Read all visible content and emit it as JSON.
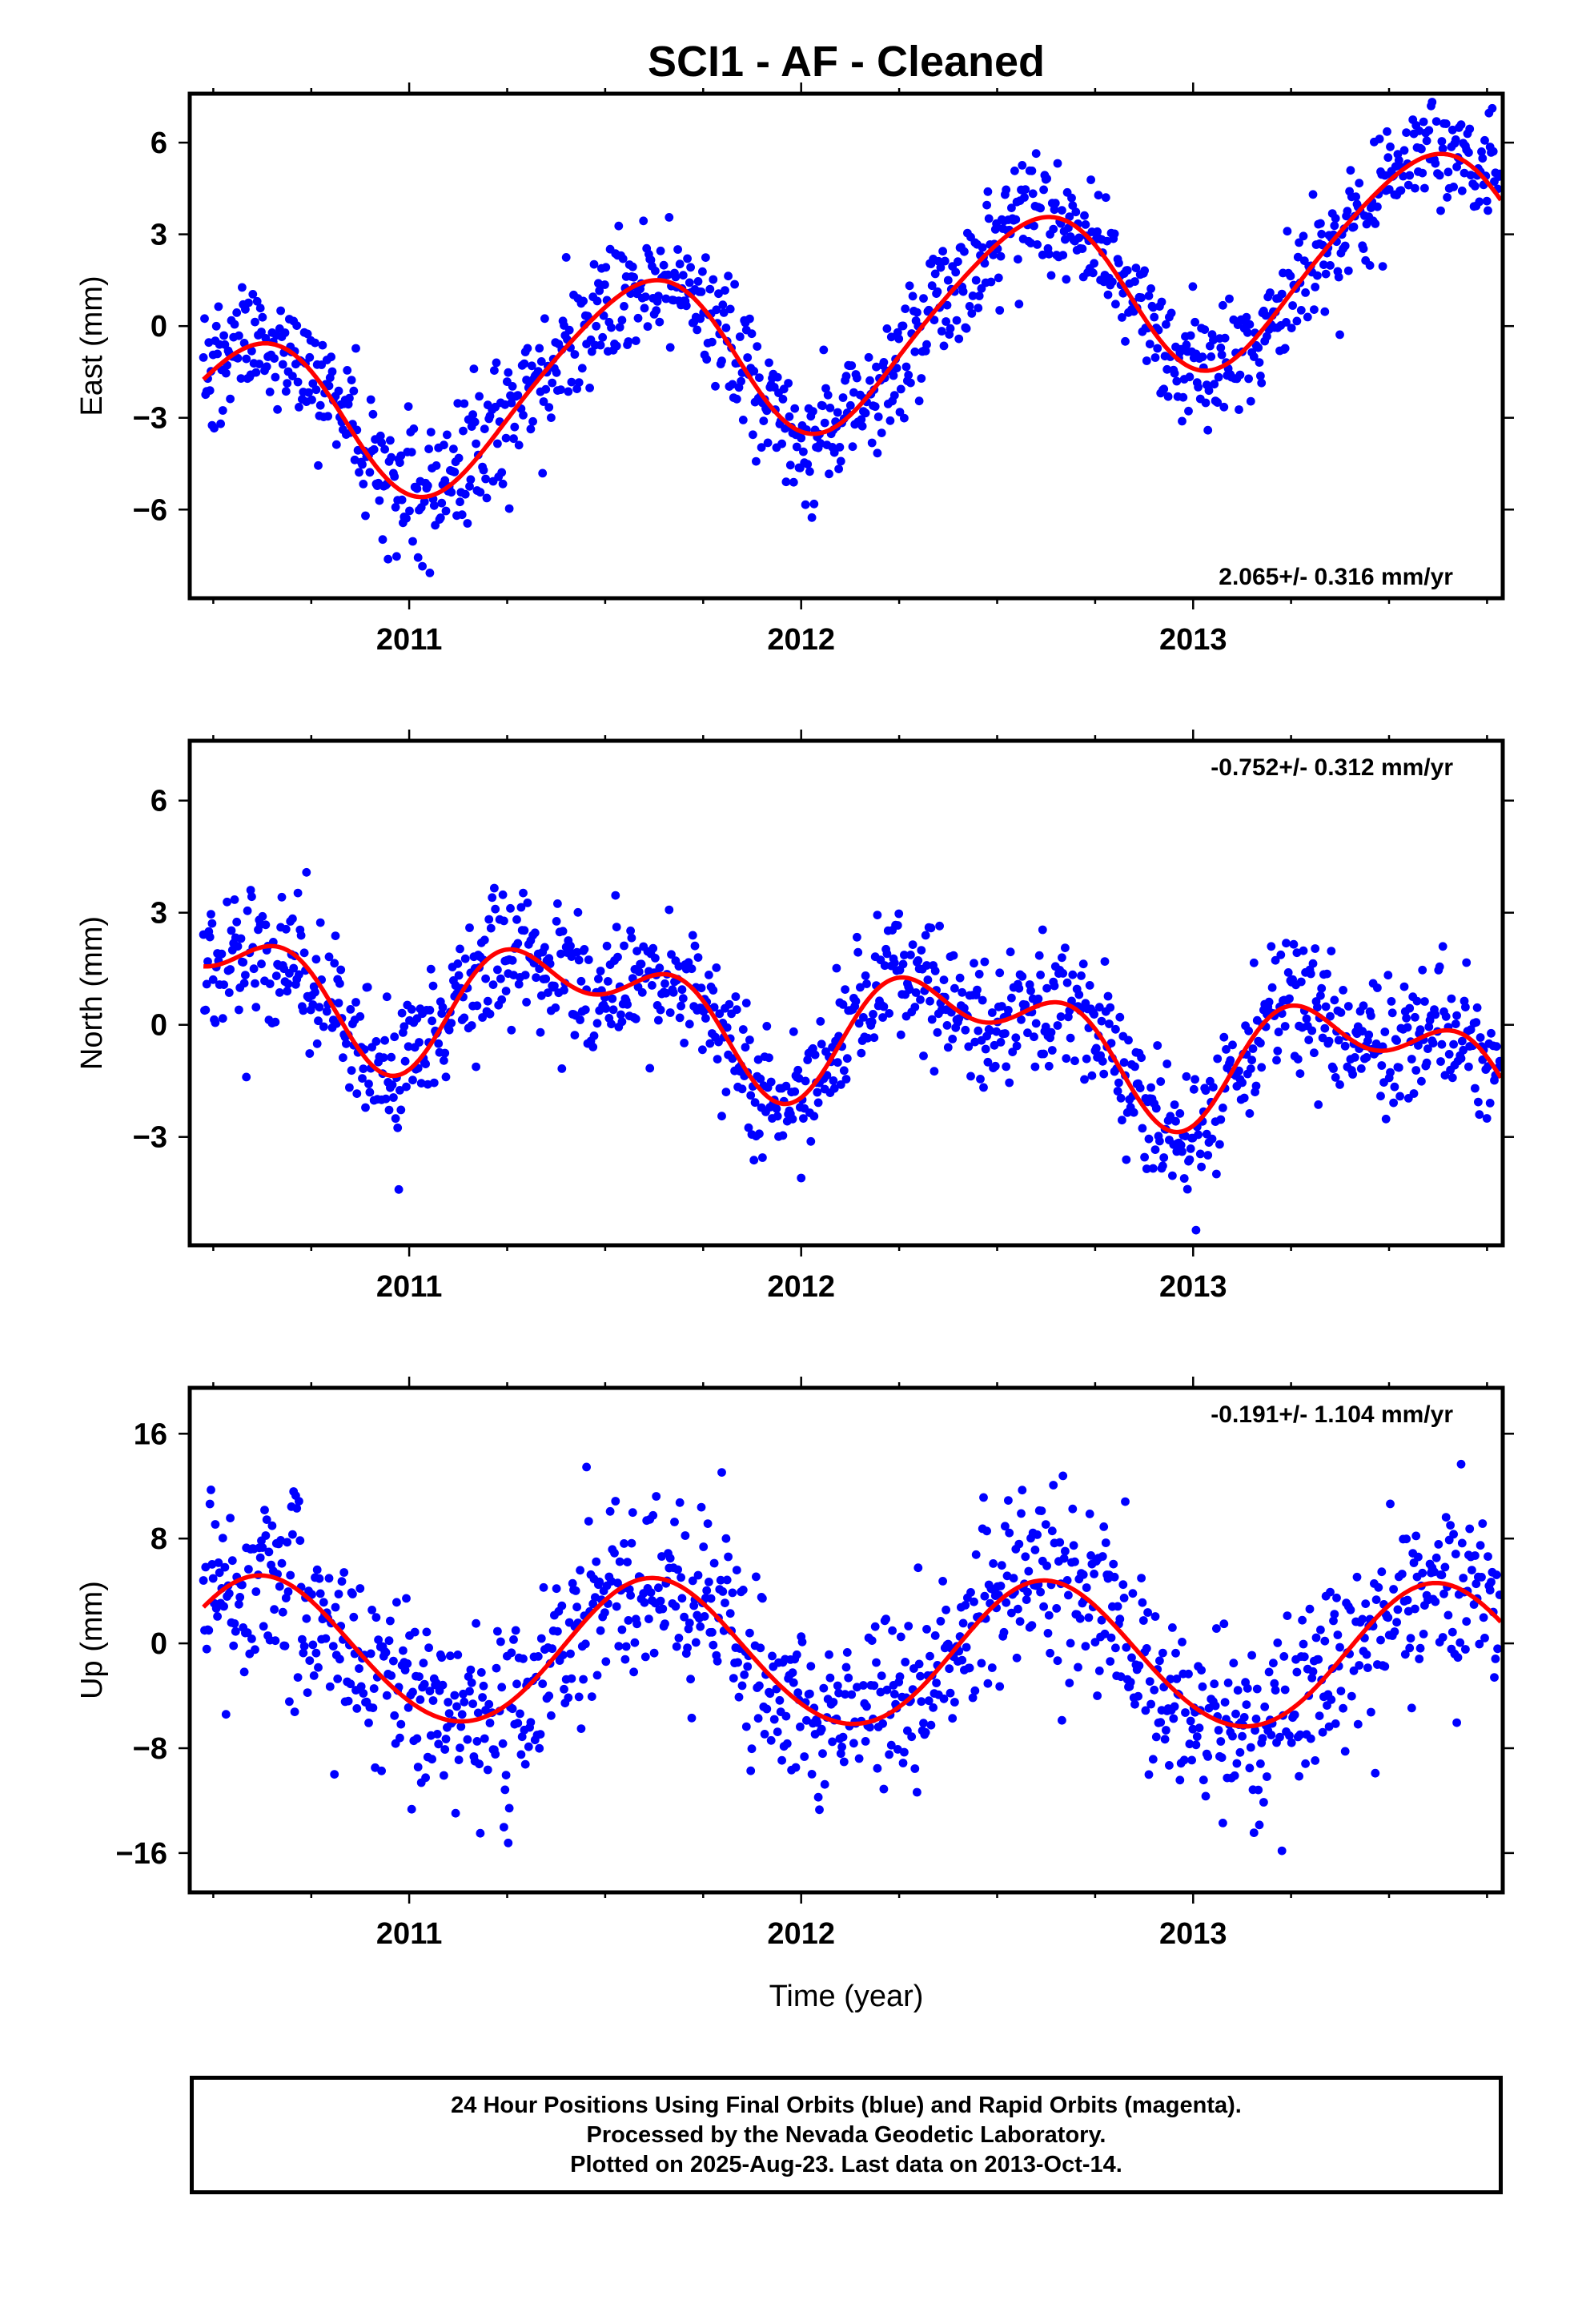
{
  "title": "SCI1  - AF - Cleaned",
  "colors": {
    "points": "#0000ff",
    "fit": "#ff0000",
    "axes": "#000000"
  },
  "chart_data": [
    {
      "type": "scatter",
      "ylabel": "East (mm)",
      "xlabel": "",
      "xlim": [
        2010.44,
        2013.79
      ],
      "ylim": [
        -8.9,
        7.6
      ],
      "yticks": [
        6,
        3,
        0,
        -3,
        -6
      ],
      "ytick_labels": [
        "6",
        "3",
        "0",
        "−3",
        "−6"
      ],
      "xticks": [
        2011,
        2012,
        2013
      ],
      "xtick_labels": [
        "2011",
        "2012",
        "2013"
      ],
      "rate_label": "2.065+/- 0.316 mm/yr",
      "rate_position": "bottom-right",
      "model": {
        "offset": -0.55,
        "rate": 2.065,
        "annual": [
          -1.3,
          -2.55
        ],
        "semiannual": [
          0.1,
          -0.35
        ]
      },
      "series": [
        {
          "color": "#0000ff",
          "noise": 1.05
        }
      ]
    },
    {
      "type": "scatter",
      "ylabel": "North (mm)",
      "xlabel": "",
      "xlim": [
        2010.44,
        2013.79
      ],
      "ylim": [
        -5.9,
        7.6
      ],
      "yticks": [
        6,
        3,
        0,
        -3
      ],
      "ytick_labels": [
        "6",
        "3",
        "0",
        "−3"
      ],
      "xticks": [
        2011,
        2012,
        2013
      ],
      "xtick_labels": [
        "2011",
        "2012",
        "2013"
      ],
      "rate_label": "-0.752+/- 0.312 mm/yr",
      "rate_position": "top-right",
      "model": {
        "offset": 0.1,
        "rate": -0.752,
        "annual": [
          0.5,
          -1.2
        ],
        "semiannual": [
          0.45,
          -0.85
        ]
      },
      "series": [
        {
          "color": "#0000ff",
          "noise": 0.85
        }
      ]
    },
    {
      "type": "scatter",
      "ylabel": "Up (mm)",
      "xlabel": "Time (year)",
      "xlim": [
        2010.44,
        2013.79
      ],
      "ylim": [
        -19,
        19.5
      ],
      "yticks": [
        16,
        8,
        0,
        -8,
        -16
      ],
      "ytick_labels": [
        "16",
        "8",
        "0",
        "−8",
        "−16"
      ],
      "xticks": [
        2011,
        2012,
        2013
      ],
      "xtick_labels": [
        "2011",
        "2012",
        "2013"
      ],
      "rate_label": "-0.191+/- 1.104 mm/yr",
      "rate_position": "top-right",
      "model": {
        "offset": -0.8,
        "rate": -0.191,
        "annual": [
          -3.9,
          -3.9
        ],
        "semiannual": [
          0.2,
          0.1
        ]
      },
      "series": [
        {
          "color": "#0000ff",
          "noise": 3.6
        }
      ]
    }
  ],
  "footer": {
    "line1": "24 Hour Positions Using Final Orbits (blue) and Rapid Orbits (magenta).",
    "line2": "Processed by the Nevada Geodetic Laboratory.",
    "line3": "Plotted on 2025-Aug-23. Last data on 2013-Oct-14."
  }
}
